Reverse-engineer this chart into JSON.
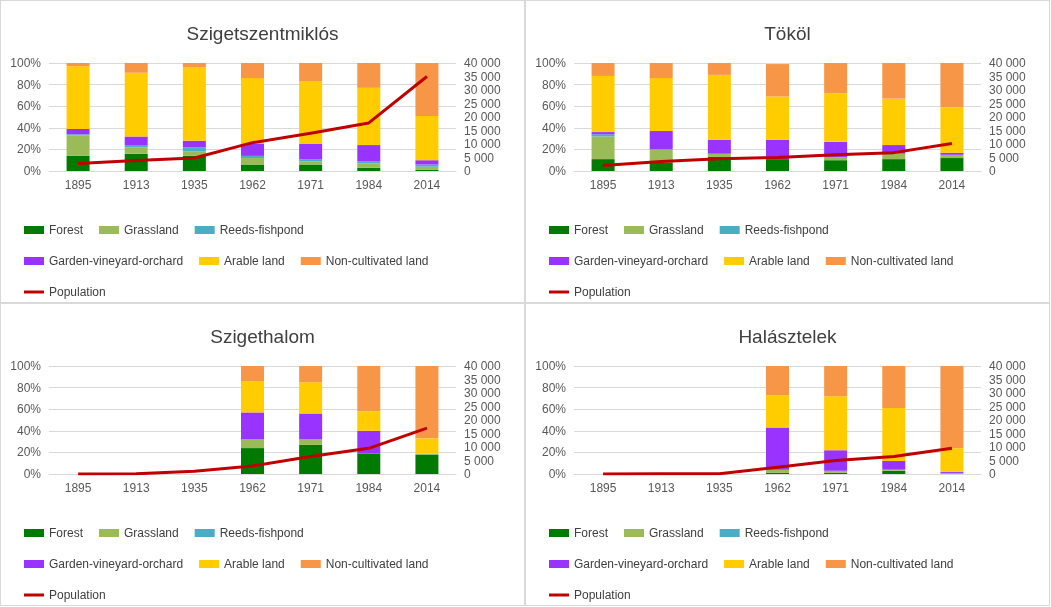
{
  "chart_data": [
    {
      "type": "bar",
      "title": "Szigetszentmiklós",
      "stacked": true,
      "categories": [
        "1895",
        "1913",
        "1935",
        "1962",
        "1971",
        "1984",
        "2014"
      ],
      "ylim": [
        0,
        100
      ],
      "yticks": [
        {
          "value": 0,
          "label": "0%"
        },
        {
          "value": 20,
          "label": "20%"
        },
        {
          "value": 40,
          "label": "40%"
        },
        {
          "value": 60,
          "label": "60%"
        },
        {
          "value": 80,
          "label": "80%"
        },
        {
          "value": 100,
          "label": "100%"
        }
      ],
      "y2lim": [
        0,
        40000
      ],
      "y2ticks": [
        {
          "value": 0,
          "label": "0"
        },
        {
          "value": 5000,
          "label": "5 000"
        },
        {
          "value": 10000,
          "label": "10 000"
        },
        {
          "value": 15000,
          "label": "15 000"
        },
        {
          "value": 20000,
          "label": "20 000"
        },
        {
          "value": 25000,
          "label": "25 000"
        },
        {
          "value": 30000,
          "label": "30 000"
        },
        {
          "value": 35000,
          "label": "35 000"
        },
        {
          "value": 40000,
          "label": "40 000"
        }
      ],
      "grid": "y",
      "legend": "bottom",
      "series": [
        {
          "name": "Forest",
          "color": "#007a00",
          "values": [
            14,
            16,
            14,
            6,
            6,
            3,
            1
          ]
        },
        {
          "name": "Grassland",
          "color": "#9bbb59",
          "values": [
            19,
            6,
            4,
            6,
            3,
            4,
            3
          ]
        },
        {
          "name": "Reeds-fishpond",
          "color": "#4bacc6",
          "values": [
            1,
            2,
            4,
            2,
            2,
            2,
            2
          ]
        },
        {
          "name": "Garden-vineyard-orchard",
          "color": "#9933ff",
          "values": [
            5,
            8,
            6,
            11,
            14,
            15,
            4
          ]
        },
        {
          "name": "Arable land",
          "color": "#ffcc00",
          "values": [
            58,
            59,
            68,
            61,
            58,
            53,
            41
          ]
        },
        {
          "name": "Non-cultivated land",
          "color": "#f79646",
          "values": [
            3,
            9,
            4,
            14,
            17,
            23,
            49
          ]
        },
        {
          "name": "Population",
          "color": "#c00000",
          "type": "line",
          "axis": "y2",
          "marker": "none",
          "values": [
            2800,
            3900,
            4800,
            10500,
            14000,
            17800,
            35000
          ]
        }
      ]
    },
    {
      "type": "bar",
      "title": "Tököl",
      "stacked": true,
      "categories": [
        "1895",
        "1913",
        "1935",
        "1962",
        "1971",
        "1984",
        "2014"
      ],
      "ylim": [
        0,
        100
      ],
      "yticks": [
        {
          "value": 0,
          "label": "0%"
        },
        {
          "value": 20,
          "label": "20%"
        },
        {
          "value": 40,
          "label": "40%"
        },
        {
          "value": 60,
          "label": "60%"
        },
        {
          "value": 80,
          "label": "80%"
        },
        {
          "value": 100,
          "label": "100%"
        }
      ],
      "y2lim": [
        0,
        40000
      ],
      "y2ticks": [
        {
          "value": 0,
          "label": "0"
        },
        {
          "value": 5000,
          "label": "5 000"
        },
        {
          "value": 10000,
          "label": "10 000"
        },
        {
          "value": 15000,
          "label": "15 000"
        },
        {
          "value": 20000,
          "label": "20 000"
        },
        {
          "value": 25000,
          "label": "25 000"
        },
        {
          "value": 30000,
          "label": "30 000"
        },
        {
          "value": 35000,
          "label": "35 000"
        },
        {
          "value": 40000,
          "label": "40 000"
        }
      ],
      "grid": "y",
      "legend": "bottom",
      "series": [
        {
          "name": "Forest",
          "color": "#007a00",
          "values": [
            11,
            8,
            13,
            11,
            10,
            11,
            12
          ]
        },
        {
          "name": "Grassland",
          "color": "#9bbb59",
          "values": [
            21,
            12,
            3,
            null,
            3,
            5,
            3
          ]
        },
        {
          "name": "Reeds-fishpond",
          "color": "#4bacc6",
          "values": [
            2,
            0,
            0,
            0,
            0,
            0,
            0
          ]
        },
        {
          "name": "Garden-vineyard-orchard",
          "color": "#9933ff",
          "values": [
            2,
            17,
            13,
            18,
            14,
            8,
            2
          ]
        },
        {
          "name": "Arable land",
          "color": "#ffcc00",
          "values": [
            52,
            49,
            60,
            40,
            45,
            43,
            42
          ]
        },
        {
          "name": "Non-cultivated land",
          "color": "#f79646",
          "values": [
            12,
            14,
            11,
            30,
            28,
            33,
            41
          ]
        },
        {
          "name": "Population",
          "color": "#c00000",
          "type": "line",
          "axis": "y2",
          "marker": "none",
          "values": [
            2000,
            3500,
            4500,
            5000,
            6000,
            6800,
            10200
          ]
        }
      ]
    },
    {
      "type": "bar",
      "title": "Szigethalom",
      "stacked": true,
      "categories": [
        "1895",
        "1913",
        "1935",
        "1962",
        "1971",
        "1984",
        "2014"
      ],
      "ylim": [
        0,
        100
      ],
      "yticks": [
        {
          "value": 0,
          "label": "0%"
        },
        {
          "value": 20,
          "label": "20%"
        },
        {
          "value": 40,
          "label": "40%"
        },
        {
          "value": 60,
          "label": "60%"
        },
        {
          "value": 80,
          "label": "80%"
        },
        {
          "value": 100,
          "label": "100%"
        }
      ],
      "y2lim": [
        0,
        40000
      ],
      "y2ticks": [
        {
          "value": 0,
          "label": "0"
        },
        {
          "value": 5000,
          "label": "5 000"
        },
        {
          "value": 10000,
          "label": "10 000"
        },
        {
          "value": 15000,
          "label": "15 000"
        },
        {
          "value": 20000,
          "label": "20 000"
        },
        {
          "value": 25000,
          "label": "25 000"
        },
        {
          "value": 30000,
          "label": "30 000"
        },
        {
          "value": 35000,
          "label": "35 000"
        },
        {
          "value": 40000,
          "label": "40 000"
        }
      ],
      "grid": "y",
      "legend": "bottom",
      "series": [
        {
          "name": "Forest",
          "color": "#007a00",
          "values": [
            null,
            null,
            null,
            24,
            27,
            19,
            18
          ]
        },
        {
          "name": "Grassland",
          "color": "#9bbb59",
          "values": [
            null,
            null,
            null,
            8,
            5,
            0,
            1
          ]
        },
        {
          "name": "Reeds-fishpond",
          "color": "#4bacc6",
          "values": [
            null,
            null,
            null,
            0,
            0,
            0,
            0
          ]
        },
        {
          "name": "Garden-vineyard-orchard",
          "color": "#9933ff",
          "values": [
            null,
            null,
            null,
            25,
            24,
            21,
            0
          ]
        },
        {
          "name": "Arable land",
          "color": "#ffcc00",
          "values": [
            null,
            null,
            null,
            29,
            29,
            18,
            14
          ]
        },
        {
          "name": "Non-cultivated land",
          "color": "#f79646",
          "values": [
            null,
            null,
            null,
            14,
            15,
            42,
            67
          ]
        },
        {
          "name": "Population",
          "color": "#c00000",
          "type": "line",
          "axis": "y2",
          "marker": "none",
          "values": [
            0,
            100,
            1000,
            3000,
            6500,
            9500,
            17000
          ]
        }
      ]
    },
    {
      "type": "bar",
      "title": "Halásztelek",
      "stacked": true,
      "categories": [
        "1895",
        "1913",
        "1935",
        "1962",
        "1971",
        "1984",
        "2014"
      ],
      "ylim": [
        0,
        100
      ],
      "yticks": [
        {
          "value": 0,
          "label": "0%"
        },
        {
          "value": 20,
          "label": "20%"
        },
        {
          "value": 40,
          "label": "40%"
        },
        {
          "value": 60,
          "label": "60%"
        },
        {
          "value": 80,
          "label": "80%"
        },
        {
          "value": 100,
          "label": "100%"
        }
      ],
      "y2lim": [
        0,
        40000
      ],
      "y2ticks": [
        {
          "value": 0,
          "label": "0"
        },
        {
          "value": 5000,
          "label": "5 000"
        },
        {
          "value": 10000,
          "label": "10 000"
        },
        {
          "value": 15000,
          "label": "15 000"
        },
        {
          "value": 20000,
          "label": "20 000"
        },
        {
          "value": 25000,
          "label": "25 000"
        },
        {
          "value": 30000,
          "label": "30 000"
        },
        {
          "value": 35000,
          "label": "35 000"
        },
        {
          "value": 40000,
          "label": "40 000"
        }
      ],
      "grid": "y",
      "legend": "bottom",
      "series": [
        {
          "name": "Forest",
          "color": "#007a00",
          "values": [
            null,
            null,
            null,
            1,
            1,
            3,
            0
          ]
        },
        {
          "name": "Grassland",
          "color": "#9bbb59",
          "values": [
            null,
            null,
            null,
            3,
            2,
            1,
            1
          ]
        },
        {
          "name": "Reeds-fishpond",
          "color": "#4bacc6",
          "values": [
            null,
            null,
            null,
            0,
            0,
            0,
            0
          ]
        },
        {
          "name": "Garden-vineyard-orchard",
          "color": "#9933ff",
          "values": [
            null,
            null,
            null,
            39,
            19,
            8,
            1
          ]
        },
        {
          "name": "Arable land",
          "color": "#ffcc00",
          "values": [
            null,
            null,
            null,
            30,
            50,
            49,
            22
          ]
        },
        {
          "name": "Non-cultivated land",
          "color": "#f79646",
          "values": [
            null,
            null,
            null,
            27,
            28,
            39,
            76
          ]
        },
        {
          "name": "Population",
          "color": "#c00000",
          "type": "line",
          "axis": "y2",
          "marker": "none",
          "values": [
            0,
            100,
            100,
            2500,
            5000,
            6500,
            9500
          ]
        }
      ]
    }
  ]
}
